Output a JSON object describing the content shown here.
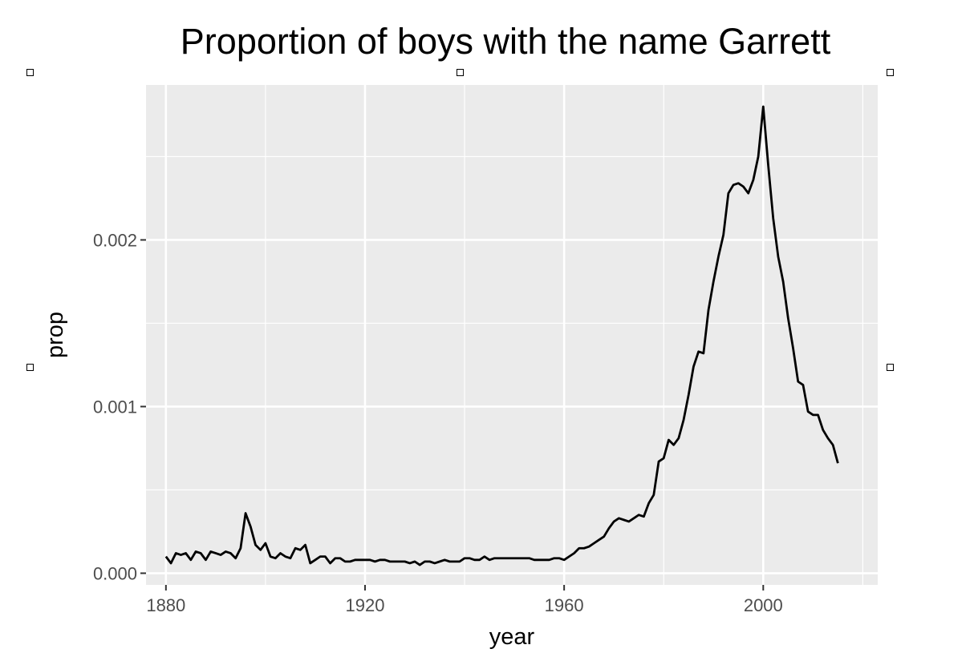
{
  "chart_data": {
    "type": "line",
    "title": "Proportion of boys with the name Garrett",
    "xlabel": "year",
    "ylabel": "prop",
    "xlim": [
      1876,
      2023
    ],
    "ylim": [
      -7e-05,
      0.00293
    ],
    "x_ticks": [
      1880,
      1920,
      1960,
      2000
    ],
    "x_tick_labels": [
      "1880",
      "1920",
      "1960",
      "2000"
    ],
    "y_ticks": [
      0.0,
      0.001,
      0.002
    ],
    "y_tick_labels": [
      "0.000",
      "0.001",
      "0.002"
    ],
    "grid": true,
    "legend": "none",
    "colors": {
      "panel": "#ebebeb",
      "grid": "#ffffff",
      "line": "#000000"
    },
    "series": [
      {
        "x": [
          1880,
          1881,
          1882,
          1883,
          1884,
          1885,
          1886,
          1887,
          1888,
          1889,
          1890,
          1891,
          1892,
          1893,
          1894,
          1895,
          1896,
          1897,
          1898,
          1899,
          1900,
          1901,
          1902,
          1903,
          1904,
          1905,
          1906,
          1907,
          1908,
          1909,
          1910,
          1911,
          1912,
          1913,
          1914,
          1915,
          1916,
          1917,
          1918,
          1919,
          1920,
          1921,
          1922,
          1923,
          1924,
          1925,
          1926,
          1927,
          1928,
          1929,
          1930,
          1931,
          1932,
          1933,
          1934,
          1935,
          1936,
          1937,
          1938,
          1939,
          1940,
          1941,
          1942,
          1943,
          1944,
          1945,
          1946,
          1947,
          1948,
          1949,
          1950,
          1951,
          1952,
          1953,
          1954,
          1955,
          1956,
          1957,
          1958,
          1959,
          1960,
          1961,
          1962,
          1963,
          1964,
          1965,
          1966,
          1967,
          1968,
          1969,
          1970,
          1971,
          1972,
          1973,
          1974,
          1975,
          1976,
          1977,
          1978,
          1979,
          1980,
          1981,
          1982,
          1983,
          1984,
          1985,
          1986,
          1987,
          1988,
          1989,
          1990,
          1991,
          1992,
          1993,
          1994,
          1995,
          1996,
          1997,
          1998,
          1999,
          2000,
          2001,
          2002,
          2003,
          2004,
          2005,
          2006,
          2007,
          2008,
          2009,
          2010,
          2011,
          2012,
          2013,
          2014,
          2015
        ],
        "values": [
          0.0001,
          6e-05,
          0.00012,
          0.00011,
          0.00012,
          8e-05,
          0.00013,
          0.00012,
          8e-05,
          0.00013,
          0.00012,
          0.00011,
          0.00013,
          0.00012,
          9e-05,
          0.00015,
          0.00036,
          0.00028,
          0.00017,
          0.00014,
          0.00018,
          0.0001,
          9e-05,
          0.00012,
          0.0001,
          9e-05,
          0.00015,
          0.00014,
          0.00017,
          6e-05,
          8e-05,
          0.0001,
          0.0001,
          6e-05,
          9e-05,
          9e-05,
          7e-05,
          7e-05,
          8e-05,
          8e-05,
          8e-05,
          8e-05,
          7e-05,
          8e-05,
          8e-05,
          7e-05,
          7e-05,
          7e-05,
          7e-05,
          6e-05,
          7e-05,
          5e-05,
          7e-05,
          7e-05,
          6e-05,
          7e-05,
          8e-05,
          7e-05,
          7e-05,
          7e-05,
          9e-05,
          9e-05,
          8e-05,
          8e-05,
          0.0001,
          8e-05,
          9e-05,
          9e-05,
          9e-05,
          9e-05,
          9e-05,
          9e-05,
          9e-05,
          9e-05,
          8e-05,
          8e-05,
          8e-05,
          8e-05,
          9e-05,
          9e-05,
          8e-05,
          0.0001,
          0.00012,
          0.00015,
          0.00015,
          0.00016,
          0.00018,
          0.0002,
          0.00022,
          0.00027,
          0.00031,
          0.00033,
          0.00032,
          0.00031,
          0.00033,
          0.00035,
          0.00034,
          0.00042,
          0.00047,
          0.00067,
          0.00069,
          0.0008,
          0.00077,
          0.00081,
          0.00092,
          0.00107,
          0.00124,
          0.00133,
          0.00132,
          0.00158,
          0.00175,
          0.0019,
          0.00203,
          0.00228,
          0.00233,
          0.00234,
          0.00232,
          0.00228,
          0.00236,
          0.0025,
          0.0028,
          0.00245,
          0.00213,
          0.0019,
          0.00175,
          0.00153,
          0.00135,
          0.00115,
          0.00113,
          0.00097,
          0.00095,
          0.00095,
          0.00086,
          0.00081,
          0.00077,
          0.00066
        ]
      }
    ]
  }
}
